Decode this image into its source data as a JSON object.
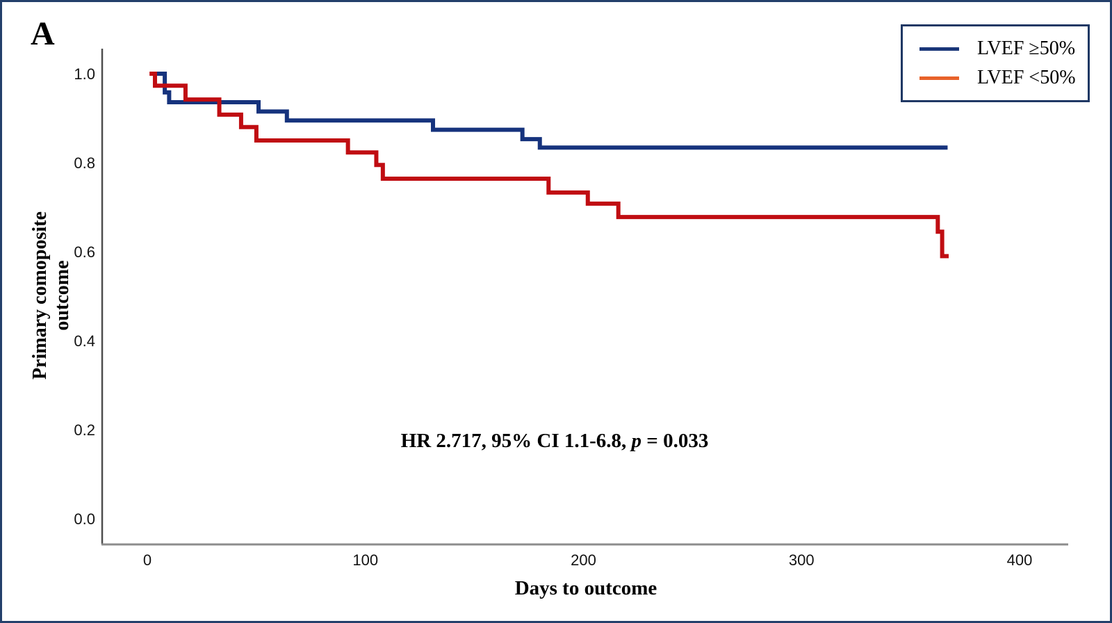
{
  "panel_label": "A",
  "annotation": {
    "prefix": "HR 2.717, 95% CI 1.1-6.8, ",
    "p_symbol": "p",
    "suffix": " = 0.033"
  },
  "legend": {
    "items": [
      {
        "label": "LVEF ≥50%",
        "color": "#1A3679"
      },
      {
        "label": "LVEF <50%",
        "color": "#E8622A"
      }
    ]
  },
  "chart_data": {
    "type": "line",
    "subtype": "kaplan-meier-step",
    "title": "",
    "xlabel": "Days to outcome",
    "ylabel": "Primary comoposite outcome",
    "x_ticks": [
      0,
      100,
      200,
      300,
      400
    ],
    "y_ticks": [
      0.0,
      0.2,
      0.4,
      0.6,
      0.8,
      1.0
    ],
    "xlim": [
      -21,
      422
    ],
    "ylim": [
      -0.06,
      1.06
    ],
    "grid": false,
    "legend_position": "top-right",
    "annotation_text": "HR 2.717, 95% CI 1.1-6.8, p = 0.033",
    "series": [
      {
        "name": "LVEF ≥50%",
        "line_color": "#16337D",
        "legend_color": "#1A3679",
        "points": [
          [
            4,
            1.0
          ],
          [
            8,
            0.958
          ],
          [
            10,
            0.936
          ],
          [
            51,
            0.915
          ],
          [
            64,
            0.895
          ],
          [
            131,
            0.874
          ],
          [
            172,
            0.853
          ],
          [
            180,
            0.834
          ]
        ],
        "end_day": 367
      },
      {
        "name": "LVEF <50%",
        "line_color": "#C00D12",
        "legend_color": "#E8622A",
        "points": [
          [
            1,
            1.0
          ],
          [
            3.5,
            0.973
          ],
          [
            17.5,
            0.942
          ],
          [
            33,
            0.908
          ],
          [
            43,
            0.88
          ],
          [
            50,
            0.85
          ],
          [
            92,
            0.823
          ],
          [
            105,
            0.795
          ],
          [
            108,
            0.764
          ],
          [
            184,
            0.733
          ],
          [
            202,
            0.708
          ],
          [
            216,
            0.678
          ],
          [
            362.5,
            0.645
          ],
          [
            364.5,
            0.59
          ]
        ],
        "end_day": 367.5
      }
    ]
  }
}
